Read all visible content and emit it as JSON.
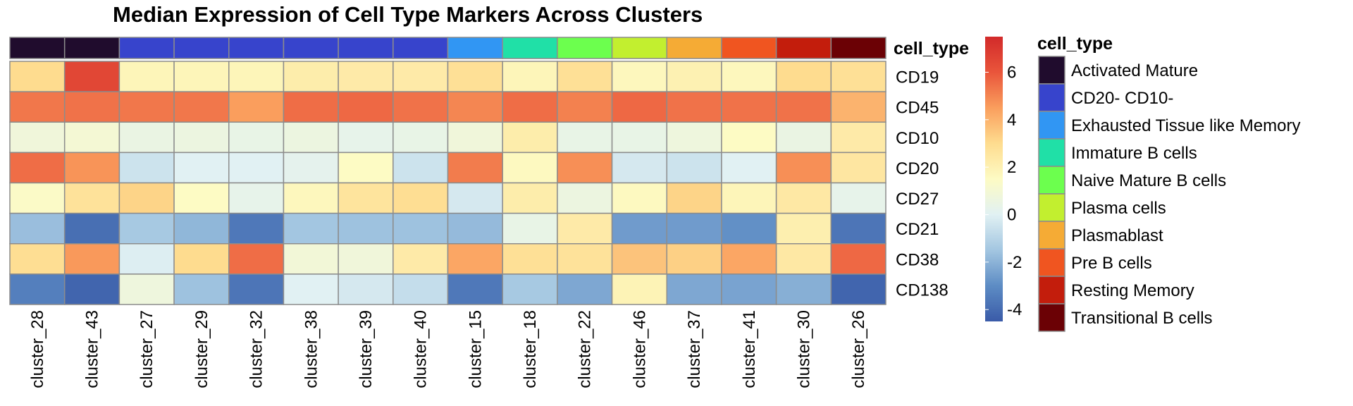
{
  "chart_data": {
    "type": "heatmap",
    "title": "Median Expression of Cell Type Markers Across Clusters",
    "annotation_title": "cell_type",
    "legend_title": "cell_type",
    "columns": [
      "cluster_28",
      "cluster_43",
      "cluster_27",
      "cluster_29",
      "cluster_32",
      "cluster_38",
      "cluster_39",
      "cluster_40",
      "cluster_15",
      "cluster_18",
      "cluster_22",
      "cluster_46",
      "cluster_37",
      "cluster_41",
      "cluster_30",
      "cluster_26"
    ],
    "rows": [
      "CD19",
      "CD45",
      "CD10",
      "CD20",
      "CD27",
      "CD21",
      "CD38",
      "CD138"
    ],
    "column_cell_types": [
      "Activated Mature",
      "Activated Mature",
      "CD20- CD10-",
      "CD20- CD10-",
      "CD20- CD10-",
      "CD20- CD10-",
      "CD20- CD10-",
      "CD20- CD10-",
      "Exhausted Tissue like Memory",
      "Immature B cells",
      "Naive Mature B cells",
      "Plasma cells",
      "Plasmablast",
      "Pre B cells",
      "Resting Memory",
      "Transitional B cells"
    ],
    "values": [
      [
        3.0,
        6.5,
        1.8,
        1.8,
        1.8,
        2.2,
        2.3,
        2.3,
        2.8,
        1.8,
        2.8,
        1.7,
        2.0,
        1.7,
        3.0,
        2.8
      ],
      [
        5.3,
        5.4,
        5.3,
        5.3,
        4.5,
        5.5,
        5.6,
        5.4,
        5.0,
        5.5,
        5.1,
        5.6,
        5.4,
        5.4,
        5.4,
        4.0
      ],
      [
        0.8,
        1.0,
        0.5,
        0.6,
        0.4,
        0.6,
        0.3,
        0.4,
        0.8,
        2.2,
        0.4,
        0.4,
        0.7,
        1.5,
        0.5,
        2.3
      ],
      [
        5.5,
        4.7,
        -0.5,
        0.0,
        0.0,
        0.2,
        1.5,
        -0.5,
        5.2,
        1.6,
        4.8,
        -0.3,
        -0.5,
        0.0,
        4.8,
        2.5
      ],
      [
        1.4,
        2.7,
        3.2,
        1.5,
        0.3,
        1.7,
        2.6,
        2.9,
        -0.3,
        2.2,
        0.6,
        1.6,
        3.2,
        1.8,
        2.4,
        0.3
      ],
      [
        -1.7,
        -3.9,
        -1.4,
        -1.9,
        -3.6,
        -1.5,
        -1.6,
        -1.6,
        -1.8,
        0.4,
        2.3,
        -2.6,
        -2.6,
        -2.9,
        2.1,
        -3.7
      ],
      [
        2.9,
        4.6,
        -0.1,
        3.0,
        5.5,
        0.9,
        0.8,
        2.3,
        4.3,
        2.8,
        2.7,
        3.6,
        3.3,
        4.3,
        2.4,
        5.6
      ],
      [
        -3.4,
        -4.2,
        0.7,
        -1.6,
        -3.7,
        0.0,
        -0.3,
        -0.7,
        -3.6,
        -1.4,
        -2.3,
        1.9,
        -2.3,
        -2.4,
        -2.1,
        -4.2
      ]
    ],
    "colorbar_ticks": [
      6,
      4,
      2,
      0,
      -2,
      -4
    ],
    "colorbar_range": [
      -4.5,
      7.5
    ],
    "color_scale": [
      "#3a5ba8",
      "#5d8cc4",
      "#a3c6e1",
      "#e1f1f3",
      "#fdfbc4",
      "#fedc8f",
      "#fa9e5d",
      "#e9553b",
      "#d22a2a"
    ],
    "cell_type_legend": [
      {
        "label": "Activated Mature",
        "color": "#200c2d"
      },
      {
        "label": "CD20- CD10-",
        "color": "#3744cc"
      },
      {
        "label": "Exhausted Tissue like Memory",
        "color": "#3196f3"
      },
      {
        "label": "Immature B cells",
        "color": "#20e0a7"
      },
      {
        "label": "Naive Mature B cells",
        "color": "#6cff4e"
      },
      {
        "label": "Plasma cells",
        "color": "#c2ef2f"
      },
      {
        "label": "Plasmablast",
        "color": "#f5ab35"
      },
      {
        "label": "Pre B cells",
        "color": "#f05520"
      },
      {
        "label": "Resting Memory",
        "color": "#c31d0c"
      },
      {
        "label": "Transitional B cells",
        "color": "#6b0105"
      }
    ]
  }
}
